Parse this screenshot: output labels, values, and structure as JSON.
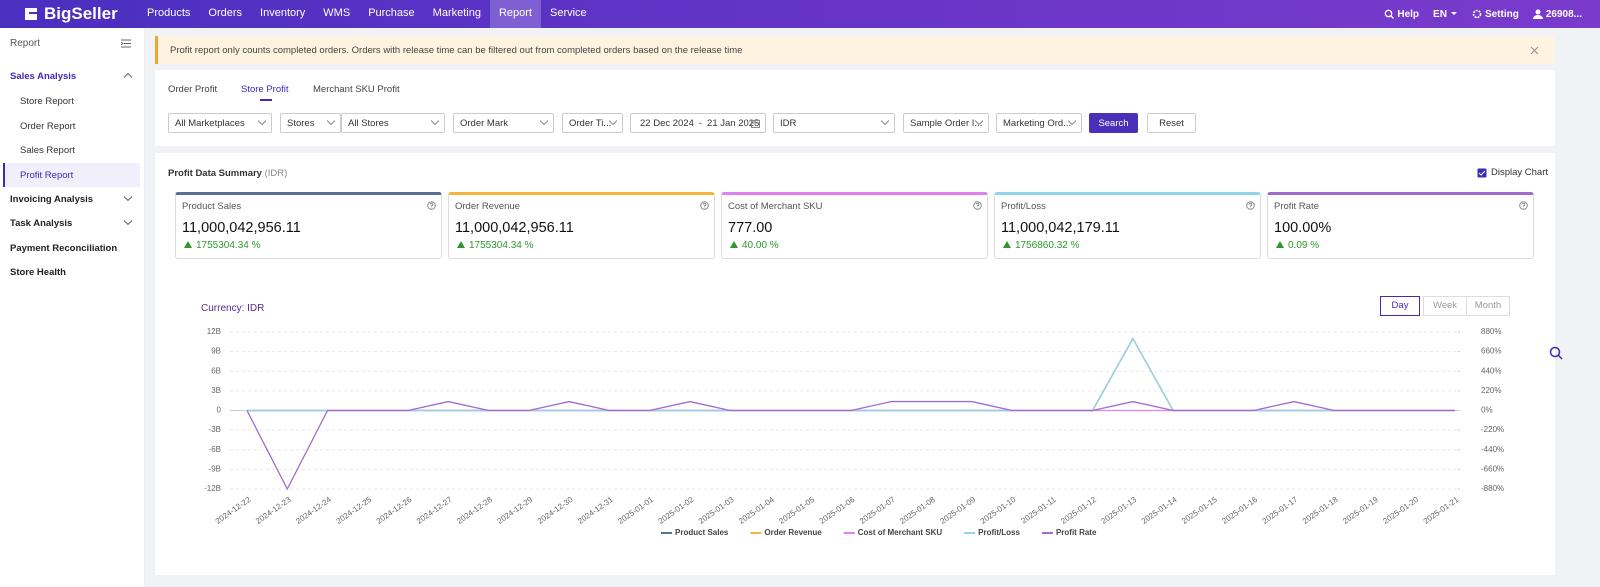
{
  "nav": {
    "logo": "BigSeller",
    "items": [
      "Products",
      "Orders",
      "Inventory",
      "WMS",
      "Purchase",
      "Marketing",
      "Report",
      "Service"
    ],
    "help": "Help",
    "lang": "EN",
    "setting": "Setting",
    "user": "26908..."
  },
  "sidebar": {
    "title": "Report",
    "sales_analysis": "Sales Analysis",
    "sales_children": [
      "Store Report",
      "Order Report",
      "Sales Report",
      "Profit Report"
    ],
    "invoicing": "Invoicing Analysis",
    "task": "Task Analysis",
    "payment": "Payment Reconciliation",
    "store_health": "Store Health"
  },
  "notice": "Profit report only counts completed orders. Orders with release time can be filtered out from completed orders based on the release time",
  "tabs": [
    "Order Profit",
    "Store Profit",
    "Merchant SKU Profit"
  ],
  "filters": {
    "marketplaces": "All Marketplaces",
    "stores_type": "Stores",
    "stores": "All Stores",
    "order_mark": "Order Mark",
    "order_time": "Order Ti...",
    "date_from": "22 Dec 2024",
    "date_sep": "-",
    "date_to": "21 Jan 2025",
    "currency": "IDR",
    "sample": "Sample Order I...",
    "marketing": "Marketing Ord...",
    "search": "Search",
    "reset": "Reset"
  },
  "summary": {
    "title": "Profit Data Summary",
    "currency": "(IDR)",
    "display_chart": "Display Chart",
    "cards": [
      {
        "label": "Product Sales",
        "value": "11,000,042,956.11",
        "change": "1755304.34 %",
        "color": "#5b6e96"
      },
      {
        "label": "Order Revenue",
        "value": "11,000,042,956.11",
        "change": "1755304.34 %",
        "color": "#f5b53d"
      },
      {
        "label": "Cost of Merchant SKU",
        "value": "777.00",
        "change": "40.00 %",
        "color": "#e07ff0"
      },
      {
        "label": "Profit/Loss",
        "value": "11,000,042,179.11",
        "change": "1756860.32 %",
        "color": "#8fd3ec"
      },
      {
        "label": "Profit Rate",
        "value": "100.00%",
        "change": "0.09 %",
        "color": "#9f6bd0"
      }
    ]
  },
  "chart_data": {
    "type": "line",
    "currency_label": "Currency:",
    "currency": "IDR",
    "periods": [
      "Day",
      "Week",
      "Month"
    ],
    "categories": [
      "2024-12-22",
      "2024-12-23",
      "2024-12-24",
      "2024-12-25",
      "2024-12-26",
      "2024-12-27",
      "2024-12-28",
      "2024-12-29",
      "2024-12-30",
      "2024-12-31",
      "2025-01-01",
      "2025-01-02",
      "2025-01-03",
      "2025-01-04",
      "2025-01-05",
      "2025-01-06",
      "2025-01-07",
      "2025-01-08",
      "2025-01-09",
      "2025-01-10",
      "2025-01-11",
      "2025-01-12",
      "2025-01-13",
      "2025-01-14",
      "2025-01-15",
      "2025-01-16",
      "2025-01-17",
      "2025-01-18",
      "2025-01-19",
      "2025-01-20",
      "2025-01-21"
    ],
    "ylim": [
      -12000000000,
      12000000000
    ],
    "yticks": [
      {
        "value": 12000000000,
        "label": "12B"
      },
      {
        "value": 9000000000,
        "label": "9B"
      },
      {
        "value": 6000000000,
        "label": "6B"
      },
      {
        "value": 3000000000,
        "label": "3B"
      },
      0,
      {
        "value": -3000000000,
        "label": "-3B"
      },
      {
        "value": -6000000000,
        "label": "-6B"
      },
      {
        "value": -9000000000,
        "label": "-9B"
      },
      {
        "value": -12000000000,
        "label": "-12B"
      }
    ],
    "y2lim": [
      -880,
      880
    ],
    "y2ticks": [
      {
        "value": 880,
        "label": "880%"
      },
      {
        "value": 660,
        "label": "660%"
      },
      {
        "value": 440,
        "label": "440%"
      },
      {
        "value": 220,
        "label": "220%"
      },
      {
        "value": 0,
        "label": "0%"
      },
      {
        "value": -220,
        "label": "-220%"
      },
      {
        "value": -440,
        "label": "-440%"
      },
      {
        "value": -660,
        "label": "-660%"
      },
      {
        "value": -880,
        "label": "-880%"
      }
    ],
    "grid": true,
    "series": [
      {
        "name": "Product Sales",
        "color": "#5b6e96",
        "values": [
          0,
          0,
          0,
          0,
          0,
          0,
          0,
          0,
          0,
          0,
          0,
          0,
          0,
          0,
          0,
          0,
          0,
          0,
          0,
          0,
          0,
          0,
          11000042956,
          0,
          0,
          0,
          0,
          0,
          0,
          0,
          0
        ]
      },
      {
        "name": "Order Revenue",
        "color": "#f5b53d",
        "values": [
          0,
          0,
          0,
          0,
          0,
          0,
          0,
          0,
          0,
          0,
          0,
          0,
          0,
          0,
          0,
          0,
          0,
          0,
          0,
          0,
          0,
          0,
          11000042956,
          0,
          0,
          0,
          0,
          0,
          0,
          0,
          0
        ]
      },
      {
        "name": "Cost of Merchant SKU",
        "color": "#e07ff0",
        "values": [
          0,
          0,
          0,
          0,
          0,
          0,
          0,
          0,
          0,
          0,
          0,
          0,
          0,
          0,
          0,
          0,
          0,
          0,
          0,
          0,
          0,
          0,
          777,
          0,
          0,
          0,
          0,
          0,
          0,
          0,
          0
        ]
      },
      {
        "name": "Profit/Loss",
        "color": "#8fd3ec",
        "values": [
          0,
          0,
          0,
          0,
          0,
          0,
          0,
          0,
          0,
          0,
          0,
          0,
          0,
          0,
          0,
          0,
          0,
          0,
          0,
          0,
          0,
          0,
          11000042179,
          0,
          0,
          0,
          0,
          0,
          0,
          0,
          0
        ]
      },
      {
        "name": "Profit Rate",
        "color": "#9f6bd0",
        "axis": "y2",
        "values": [
          0,
          -880,
          0,
          0,
          0,
          100,
          0,
          0,
          100,
          0,
          0,
          100,
          0,
          0,
          0,
          0,
          100,
          100,
          100,
          0,
          0,
          0,
          100,
          0,
          0,
          0,
          100,
          0,
          0,
          0,
          0
        ]
      }
    ]
  }
}
